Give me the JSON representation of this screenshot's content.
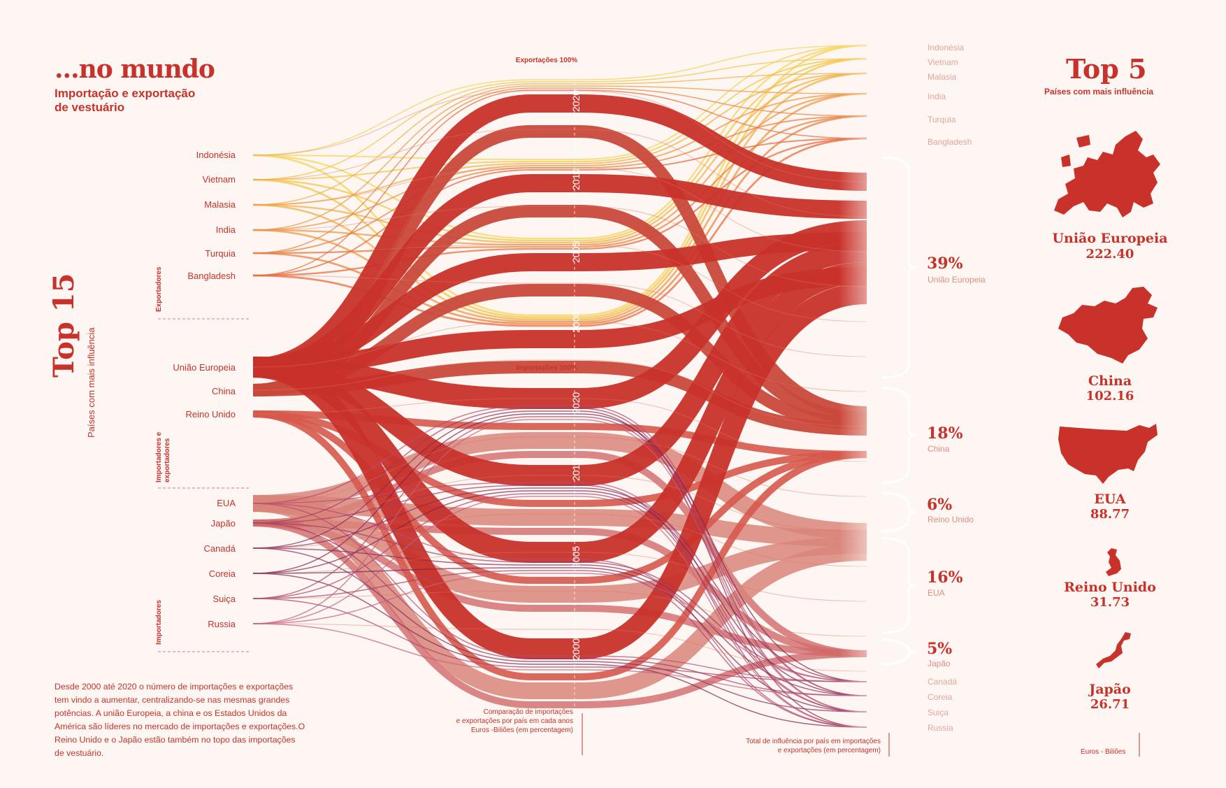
{
  "header": {
    "title": "...no mundo",
    "subtitle_line1": "Importação e exportação",
    "subtitle_line2": "de vestuário"
  },
  "top15": {
    "title": "Top 15",
    "subtitle": "Países com mais influência"
  },
  "categories": {
    "exporters": "Exportadores",
    "importers_exporters_1": "Importadores e",
    "importers_exporters_2": "exportadores",
    "importers": "Importadores"
  },
  "left_countries": [
    "Indonésia",
    "Vietnam",
    "Malasia",
    "India",
    "Turquia",
    "Bangladesh",
    "União Europeia",
    "China",
    "Reino Unido",
    "EUA",
    "Japão",
    "Canadá",
    "Coreia",
    "Suiça",
    "Russia"
  ],
  "center": {
    "exports_header": "Exportações 100%",
    "imports_header": "Importações 100%",
    "years": [
      "2020",
      "2010",
      "2005",
      "2000"
    ],
    "caption_line1": "Comparação de importações",
    "caption_line2": "e exportações por país em cada anos",
    "caption_line3": "Euros -Biliões (em percentagem)"
  },
  "right_minor_top": [
    "Indonésia",
    "Vietnam",
    "Malasia",
    "India",
    "Turquia",
    "Bangladesh"
  ],
  "right_major": [
    {
      "pct": "39%",
      "name": "União Europeia"
    },
    {
      "pct": "18%",
      "name": "China"
    },
    {
      "pct": "6%",
      "name": "Reino Unido"
    },
    {
      "pct": "16%",
      "name": "EUA"
    },
    {
      "pct": "5%",
      "name": "Japão"
    }
  ],
  "right_minor_bottom": [
    "Canadá",
    "Coreia",
    "Suiça",
    "Russia"
  ],
  "right_caption_line1": "Total de influência por país em importações",
  "right_caption_line2": "e exportações (em percentagem)",
  "top5": {
    "title": "Top 5",
    "subtitle": "Países com mais influência",
    "items": [
      {
        "name": "União Europeia",
        "value": "222.40"
      },
      {
        "name": "China",
        "value": "102.16"
      },
      {
        "name": "EUA",
        "value": "88.77"
      },
      {
        "name": "Reino Unido",
        "value": "31.73"
      },
      {
        "name": "Japão",
        "value": "26.71"
      }
    ],
    "unit": "Euros - Biliões"
  },
  "paragraph": "Desde 2000 até 2020 o número de importações e exportações tem vindo a aumentar, centralizando-se nas mesmas grandes potências. A união Europeia, a china e os Estados Unidos da América são líderes no mercado de importações e exportações.O Reino Unido e o Japão estão também no topo das importações de vestuário.",
  "colors": {
    "background": "#fdf6f2",
    "primary_red": "#c8322a",
    "salmon": "#d9857a",
    "yellow": "#f2c64a",
    "purple": "#8a2a5a"
  }
}
